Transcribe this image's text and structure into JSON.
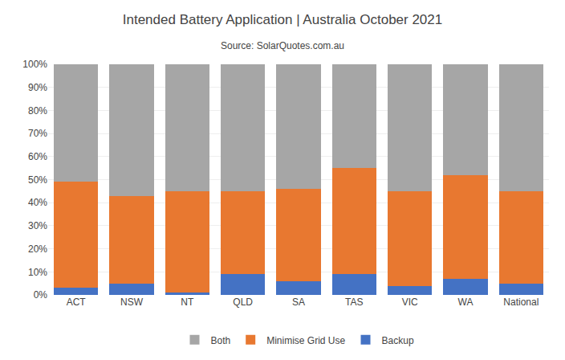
{
  "chart_data": {
    "type": "bar",
    "stacked": true,
    "title": "Intended Battery Application | Australia October 2021",
    "subtitle": "Source: SolarQuotes.com.au",
    "categories": [
      "ACT",
      "NSW",
      "NT",
      "QLD",
      "SA",
      "TAS",
      "VIC",
      "WA",
      "National"
    ],
    "series": [
      {
        "name": "Backup",
        "color": "#4472C4",
        "values": [
          3,
          5,
          1,
          9,
          6,
          9,
          4,
          7,
          5
        ]
      },
      {
        "name": "Minimise Grid Use",
        "color": "#E87830",
        "values": [
          46,
          38,
          44,
          36,
          40,
          46,
          41,
          45,
          40
        ]
      },
      {
        "name": "Both",
        "color": "#A6A6A6",
        "values": [
          51,
          57,
          55,
          55,
          54,
          45,
          55,
          48,
          55
        ]
      }
    ],
    "ylim": [
      0,
      100
    ],
    "yticks": [
      {
        "value": 0,
        "label": "0%"
      },
      {
        "value": 10,
        "label": "10%"
      },
      {
        "value": 20,
        "label": "20%"
      },
      {
        "value": 30,
        "label": "30%"
      },
      {
        "value": 40,
        "label": "40%"
      },
      {
        "value": 50,
        "label": "50%"
      },
      {
        "value": 60,
        "label": "60%"
      },
      {
        "value": 70,
        "label": "70%"
      },
      {
        "value": 80,
        "label": "80%"
      },
      {
        "value": 90,
        "label": "90%"
      },
      {
        "value": 100,
        "label": "100%"
      }
    ],
    "grid": true,
    "legend": "bottom"
  }
}
